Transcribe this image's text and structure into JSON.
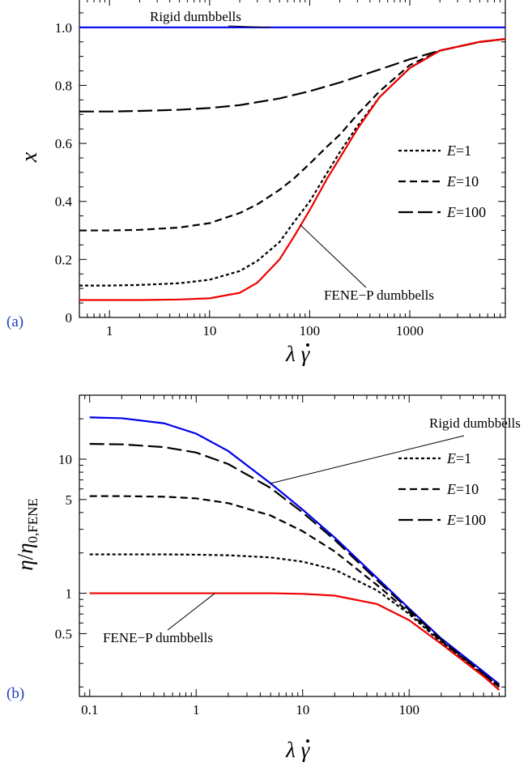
{
  "chart_data": [
    {
      "panel": "(a)",
      "type": "line",
      "xscale": "log",
      "xlim": [
        0.5,
        9000
      ],
      "ylim": [
        0,
        1.1
      ],
      "xlabel": "λγ̇",
      "ylabel": "x",
      "xticks": [
        1,
        10,
        100,
        1000
      ],
      "yticks": [
        0,
        0.2,
        0.4,
        0.6,
        0.8,
        1.0
      ],
      "ytick_labels": [
        "0",
        "0.2",
        "0.4",
        "0.6",
        "0.8",
        "1.0"
      ],
      "legend": [
        "E=1",
        "E=10",
        "E=100"
      ],
      "legend_position": "right",
      "series": [
        {
          "name": "Rigid dumbbells",
          "color": "#0000ee",
          "dash": "solid",
          "x": [
            0.5,
            1,
            10,
            100,
            1000,
            9000
          ],
          "y": [
            1.0,
            1.0,
            1.0,
            1.0,
            1.0,
            1.0
          ]
        },
        {
          "name": "E=1",
          "color": "#000000",
          "dash": "short",
          "x": [
            0.5,
            1,
            2,
            5,
            10,
            20,
            30,
            50,
            70,
            100,
            150,
            200,
            300,
            500,
            1000,
            2000,
            5000,
            9000
          ],
          "y": [
            0.11,
            0.11,
            0.112,
            0.118,
            0.13,
            0.16,
            0.195,
            0.26,
            0.33,
            0.4,
            0.5,
            0.57,
            0.66,
            0.76,
            0.86,
            0.92,
            0.95,
            0.96
          ]
        },
        {
          "name": "E=10",
          "color": "#000000",
          "dash": "medium",
          "x": [
            0.5,
            1,
            2,
            5,
            10,
            20,
            30,
            50,
            70,
            100,
            150,
            200,
            300,
            500,
            1000,
            2000,
            5000,
            9000
          ],
          "y": [
            0.3,
            0.3,
            0.302,
            0.31,
            0.325,
            0.36,
            0.39,
            0.44,
            0.48,
            0.53,
            0.59,
            0.63,
            0.7,
            0.78,
            0.87,
            0.92,
            0.95,
            0.96
          ]
        },
        {
          "name": "E=100",
          "color": "#000000",
          "dash": "long",
          "x": [
            0.5,
            1,
            2,
            5,
            10,
            20,
            50,
            100,
            200,
            500,
            1000,
            2000,
            5000,
            9000
          ],
          "y": [
            0.71,
            0.71,
            0.712,
            0.716,
            0.722,
            0.732,
            0.755,
            0.78,
            0.81,
            0.855,
            0.89,
            0.92,
            0.95,
            0.96
          ]
        },
        {
          "name": "FENE-P dumbbells",
          "color": "#ee0000",
          "dash": "solid",
          "x": [
            0.5,
            1,
            2,
            5,
            10,
            20,
            30,
            50,
            70,
            100,
            150,
            200,
            300,
            500,
            1000,
            2000,
            5000,
            9000
          ],
          "y": [
            0.06,
            0.06,
            0.06,
            0.062,
            0.066,
            0.085,
            0.12,
            0.2,
            0.28,
            0.37,
            0.48,
            0.55,
            0.65,
            0.76,
            0.86,
            0.92,
            0.95,
            0.96
          ]
        }
      ],
      "annotations": [
        {
          "text": "Rigid dumbbells",
          "series": "Rigid dumbbells",
          "x": 40,
          "y": 1.0
        },
        {
          "text": "FENE−P dumbbells",
          "series": "FENE-P dumbbells",
          "x": 80,
          "y": 0.32
        }
      ]
    },
    {
      "panel": "(b)",
      "type": "line",
      "xscale": "log",
      "yscale": "log",
      "xlim": [
        0.08,
        800
      ],
      "ylim": [
        0.17,
        30
      ],
      "xlabel": "λγ̇",
      "ylabel": "η/η0,FENE",
      "xticks": [
        0.1,
        1,
        10,
        100
      ],
      "xtick_labels": [
        "0.1",
        "1",
        "10",
        "100"
      ],
      "yticks": [
        0.5,
        1,
        5,
        10
      ],
      "ytick_labels": [
        "0.5",
        "1",
        "5",
        "10"
      ],
      "legend": [
        "E=1",
        "E=10",
        "E=100"
      ],
      "legend_position": "right",
      "series": [
        {
          "name": "Rigid dumbbells",
          "color": "#0000ee",
          "dash": "solid",
          "x": [
            0.1,
            0.2,
            0.5,
            1,
            2,
            5,
            10,
            20,
            50,
            100,
            200,
            500,
            700
          ],
          "y": [
            20.5,
            20.2,
            18.5,
            15.5,
            11.5,
            6.6,
            4.2,
            2.6,
            1.3,
            0.77,
            0.46,
            0.26,
            0.21
          ]
        },
        {
          "name": "E=100",
          "color": "#000000",
          "dash": "long",
          "x": [
            0.1,
            0.2,
            0.5,
            1,
            2,
            5,
            10,
            20,
            50,
            100,
            200,
            500,
            700
          ],
          "y": [
            13.0,
            12.9,
            12.3,
            11.2,
            9.2,
            6.1,
            4.0,
            2.5,
            1.25,
            0.75,
            0.45,
            0.25,
            0.205
          ]
        },
        {
          "name": "E=10",
          "color": "#000000",
          "dash": "medium",
          "x": [
            0.1,
            0.2,
            0.5,
            1,
            2,
            5,
            10,
            20,
            50,
            100,
            200,
            500,
            700
          ],
          "y": [
            5.3,
            5.3,
            5.25,
            5.1,
            4.7,
            3.8,
            2.9,
            2.05,
            1.15,
            0.72,
            0.44,
            0.25,
            0.2
          ]
        },
        {
          "name": "E=1",
          "color": "#000000",
          "dash": "short",
          "x": [
            0.1,
            0.2,
            0.5,
            1,
            2,
            5,
            10,
            20,
            50,
            100,
            200,
            500,
            700
          ],
          "y": [
            1.95,
            1.95,
            1.95,
            1.94,
            1.92,
            1.85,
            1.72,
            1.5,
            1.05,
            0.7,
            0.43,
            0.245,
            0.2
          ]
        },
        {
          "name": "FENE-P dumbbells",
          "color": "#ee0000",
          "dash": "solid",
          "x": [
            0.1,
            0.2,
            0.5,
            1,
            2,
            5,
            10,
            20,
            50,
            100,
            200,
            500,
            700
          ],
          "y": [
            1.0,
            1.0,
            1.0,
            1.0,
            1.0,
            1.0,
            0.99,
            0.96,
            0.83,
            0.63,
            0.42,
            0.24,
            0.19
          ]
        }
      ],
      "annotations": [
        {
          "text": "Rigid dumbbells",
          "series": "Rigid dumbbells",
          "x": 5,
          "y": 6.6
        },
        {
          "text": "FENE−P dumbbells",
          "series": "FENE-P dumbbells",
          "x": 1.5,
          "y": 1.0
        }
      ]
    }
  ]
}
